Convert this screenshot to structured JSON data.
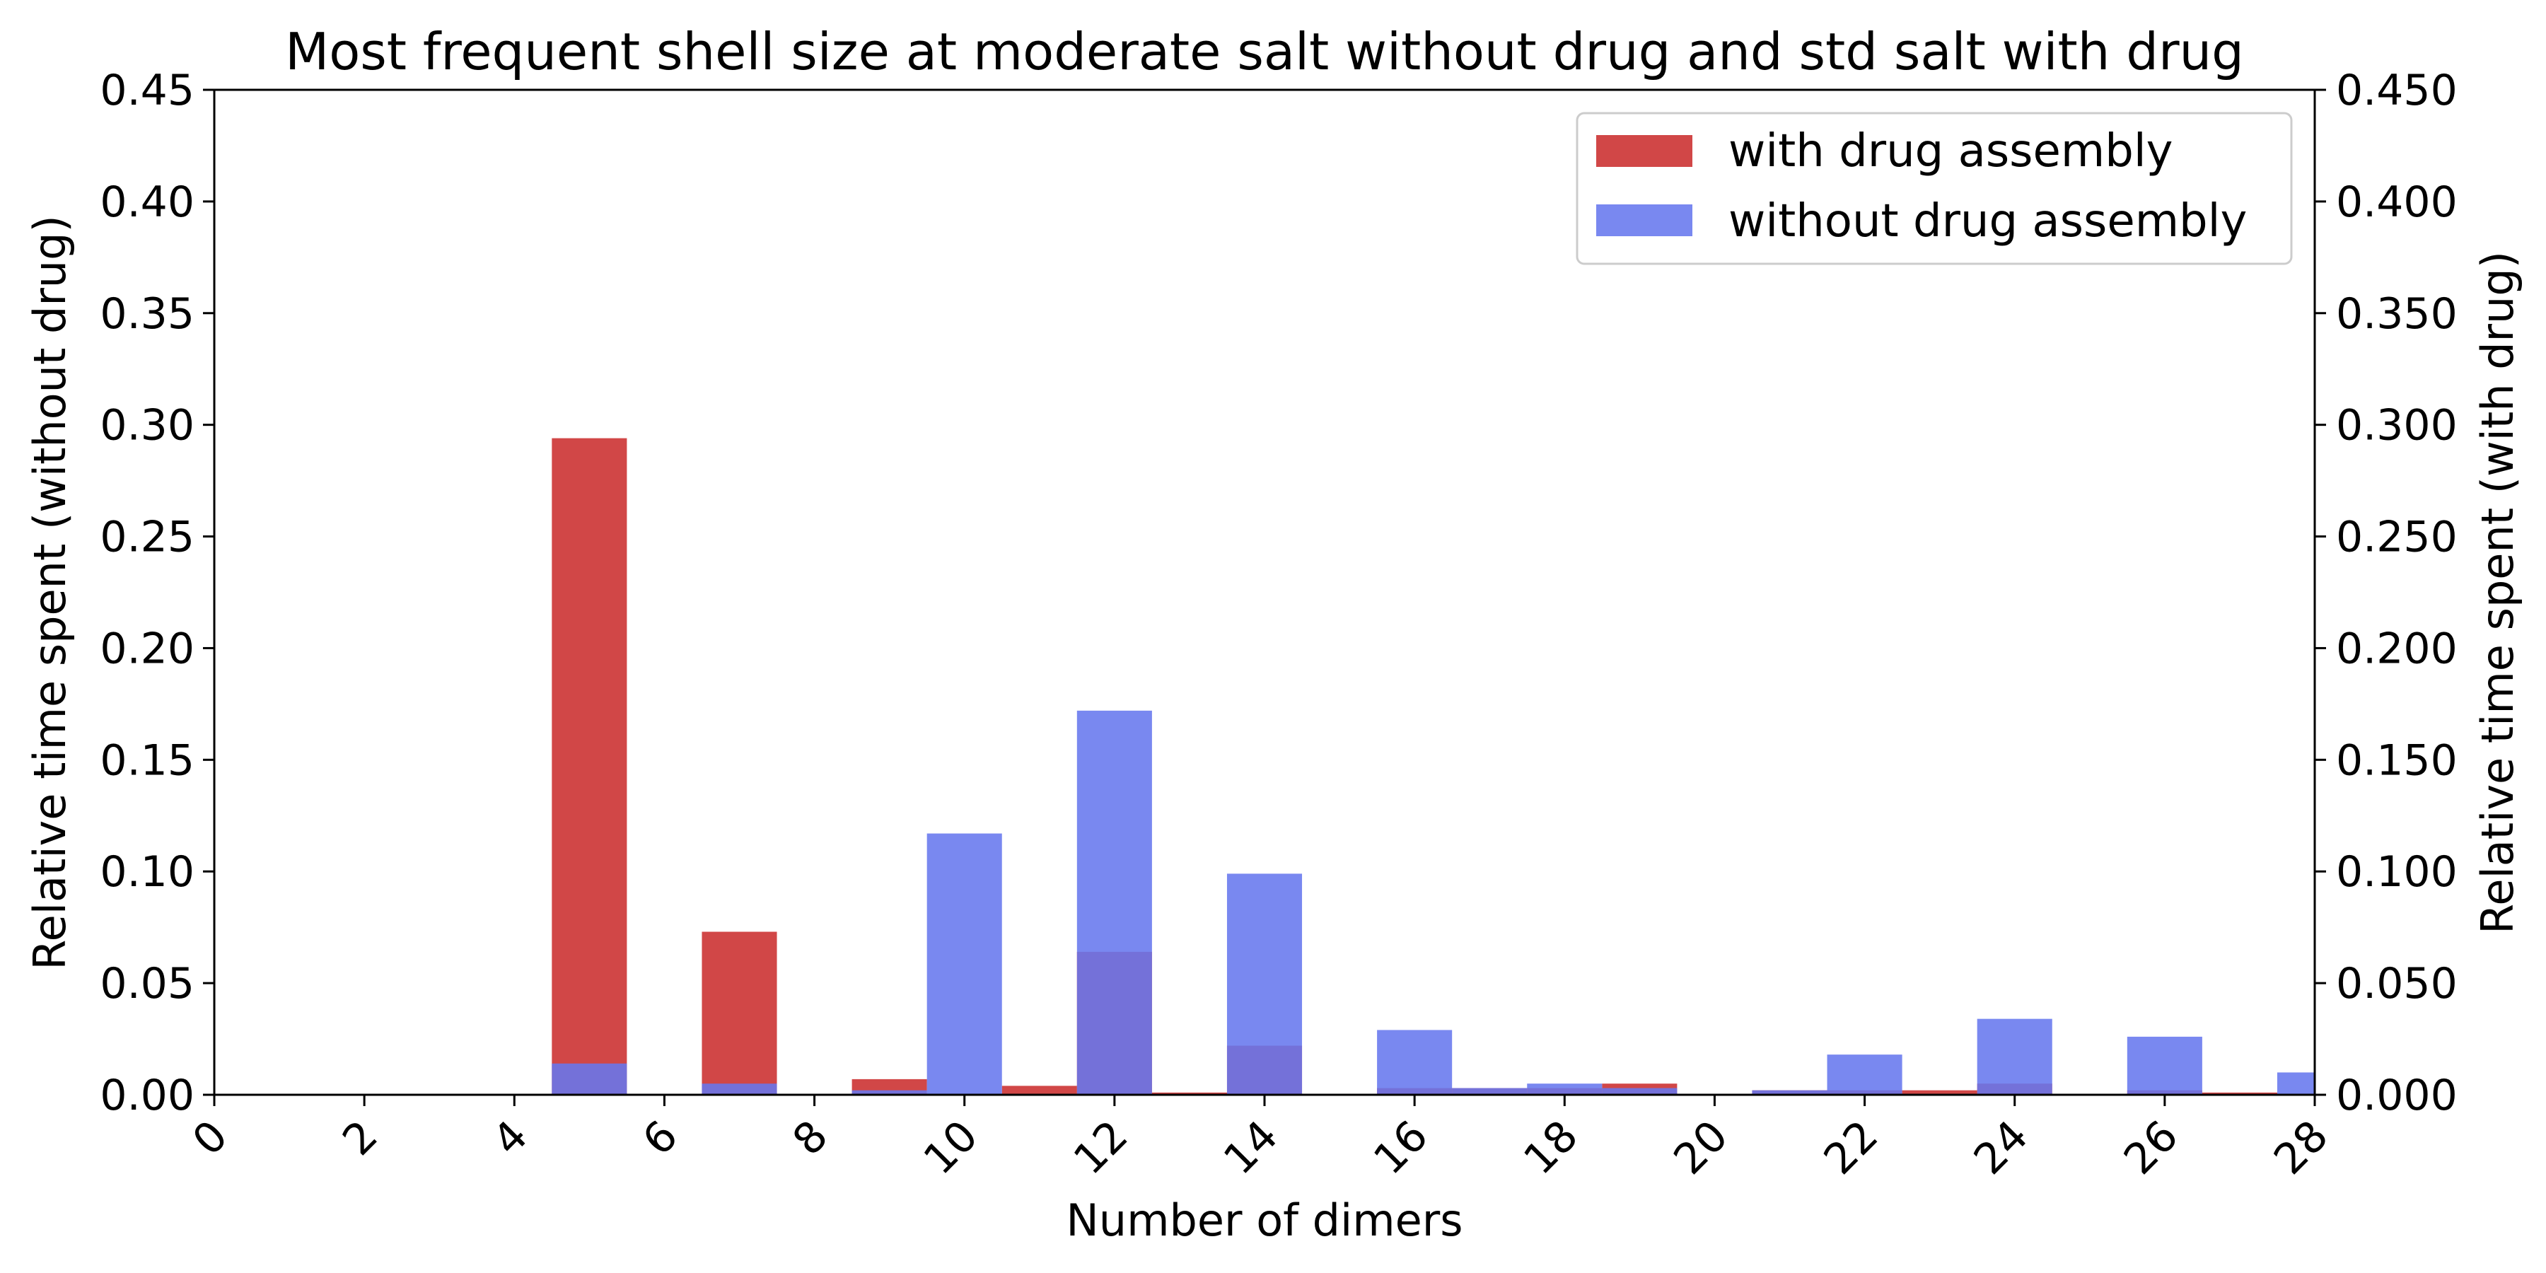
{
  "chart_data": {
    "type": "bar",
    "title": "Most frequent shell size at moderate salt without drug  and std salt with drug",
    "xlabel": "Number of dimers",
    "ylabel_left": "Relative time spent (without drug)",
    "ylabel_right": "Relative time spent (with drug)",
    "xlim": [
      0,
      28
    ],
    "ylim_left": [
      0,
      0.45
    ],
    "ylim_right": [
      0,
      0.45
    ],
    "x_ticks": [
      "0",
      "2",
      "4",
      "6",
      "8",
      "10",
      "12",
      "14",
      "16",
      "18",
      "20",
      "22",
      "24",
      "26",
      "28"
    ],
    "y_ticks_left": [
      "0.00",
      "0.05",
      "0.10",
      "0.15",
      "0.20",
      "0.25",
      "0.30",
      "0.35",
      "0.40",
      "0.45"
    ],
    "y_ticks_right": [
      "0.000",
      "0.050",
      "0.100",
      "0.150",
      "0.200",
      "0.250",
      "0.300",
      "0.350",
      "0.400",
      "0.450"
    ],
    "bin_width": 1,
    "legend_position": "top-right",
    "series": [
      {
        "name": "with drug assembly",
        "color": "#cc3333",
        "opacity": 0.9,
        "axis": "right",
        "bins": [
          {
            "x": 5,
            "value": 0.294
          },
          {
            "x": 7,
            "value": 0.073
          },
          {
            "x": 9,
            "value": 0.007
          },
          {
            "x": 11,
            "value": 0.004
          },
          {
            "x": 12,
            "value": 0.064
          },
          {
            "x": 13,
            "value": 0.001
          },
          {
            "x": 14,
            "value": 0.022
          },
          {
            "x": 16,
            "value": 0.003
          },
          {
            "x": 17,
            "value": 0.003
          },
          {
            "x": 18,
            "value": 0.003
          },
          {
            "x": 19,
            "value": 0.005
          },
          {
            "x": 21,
            "value": 0.002
          },
          {
            "x": 22,
            "value": 0.002
          },
          {
            "x": 23,
            "value": 0.002
          },
          {
            "x": 24,
            "value": 0.005
          },
          {
            "x": 26,
            "value": 0.002
          },
          {
            "x": 27,
            "value": 0.001
          }
        ]
      },
      {
        "name": "without drug assembly",
        "color": "#6677ee",
        "opacity": 0.88,
        "axis": "left",
        "bins": [
          {
            "x": 5,
            "value": 0.014
          },
          {
            "x": 7,
            "value": 0.005
          },
          {
            "x": 9,
            "value": 0.002
          },
          {
            "x": 10,
            "value": 0.117
          },
          {
            "x": 12,
            "value": 0.172
          },
          {
            "x": 14,
            "value": 0.099
          },
          {
            "x": 16,
            "value": 0.029
          },
          {
            "x": 17,
            "value": 0.003
          },
          {
            "x": 18,
            "value": 0.005
          },
          {
            "x": 19,
            "value": 0.003
          },
          {
            "x": 21,
            "value": 0.002
          },
          {
            "x": 22,
            "value": 0.018
          },
          {
            "x": 24,
            "value": 0.034
          },
          {
            "x": 26,
            "value": 0.026
          },
          {
            "x": 28,
            "value": 0.01
          }
        ]
      }
    ]
  }
}
